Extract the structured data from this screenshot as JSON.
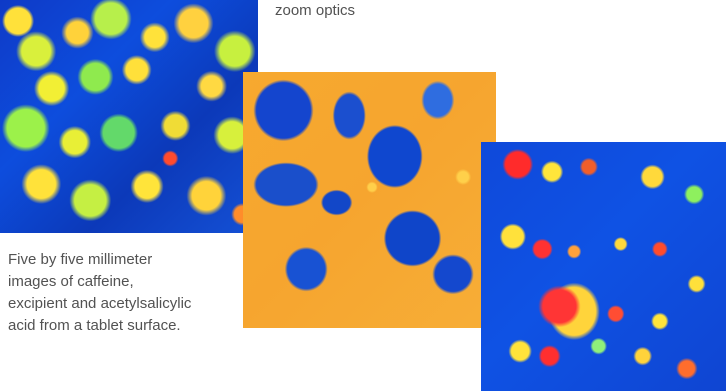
{
  "caption_top": "zoom optics",
  "caption_bottom": "Five by five millimeter\nimages of caffeine,\nexcipient and acetylsalicylic\nacid from a tablet surface.",
  "images": [
    {
      "label": "caffeine"
    },
    {
      "label": "excipient"
    },
    {
      "label": "acetylsalicylic acid"
    }
  ]
}
